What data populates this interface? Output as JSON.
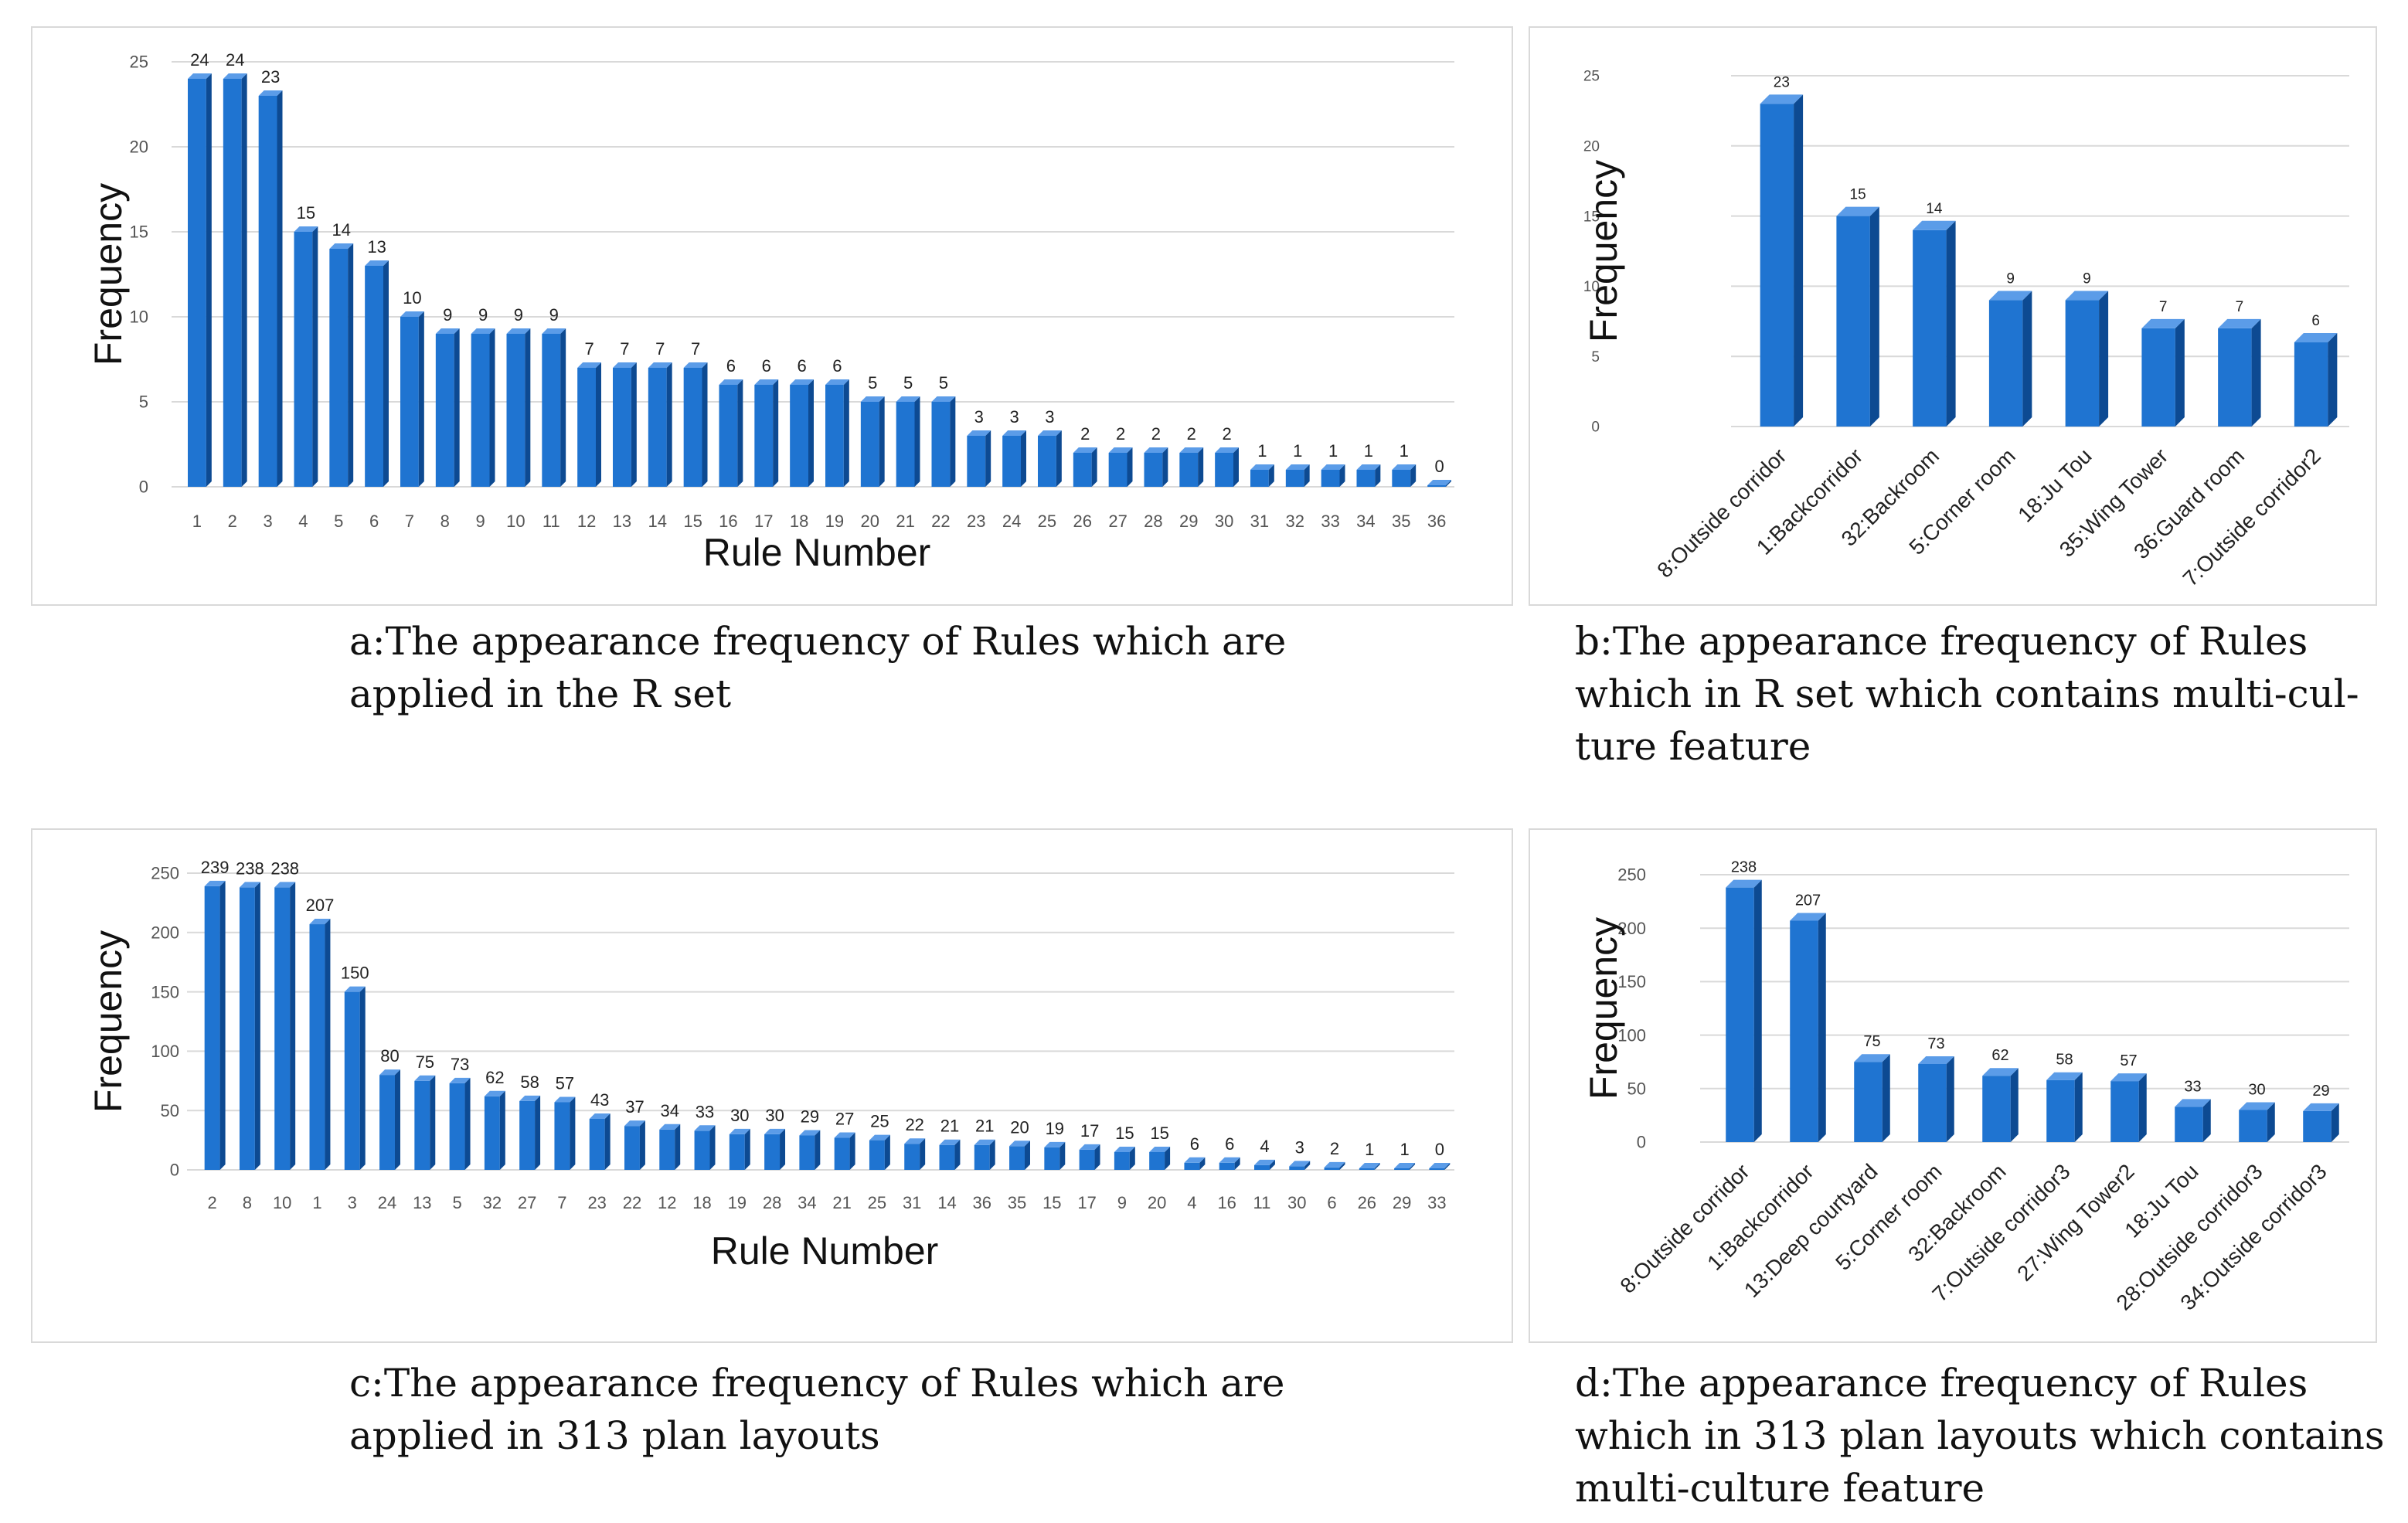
{
  "chart_data": [
    {
      "id": "a",
      "type": "bar",
      "title": "",
      "xlabel": "Rule Number",
      "ylabel": "Frequency",
      "ylim": [
        0,
        25
      ],
      "yticks": [
        "0",
        "5",
        "10",
        "15",
        "20",
        "25"
      ],
      "grid": true,
      "categories": [
        "1",
        "2",
        "3",
        "4",
        "5",
        "6",
        "7",
        "8",
        "9",
        "10",
        "11",
        "12",
        "13",
        "14",
        "15",
        "16",
        "17",
        "18",
        "19",
        "20",
        "21",
        "22",
        "23",
        "24",
        "25",
        "26",
        "27",
        "28",
        "29",
        "30",
        "31",
        "32",
        "33",
        "34",
        "35",
        "36"
      ],
      "values": [
        24,
        24,
        23,
        15,
        14,
        13,
        10,
        9,
        9,
        9,
        9,
        7,
        7,
        7,
        7,
        6,
        6,
        6,
        6,
        5,
        5,
        5,
        3,
        3,
        3,
        2,
        2,
        2,
        2,
        2,
        1,
        1,
        1,
        1,
        1,
        0
      ]
    },
    {
      "id": "b",
      "type": "bar",
      "title": "",
      "xlabel": "",
      "ylabel": "Frequency",
      "ylim": [
        0,
        25
      ],
      "yticks": [
        "0",
        "5",
        "10",
        "15",
        "20",
        "25"
      ],
      "grid": true,
      "categories": [
        "8:Outside corridor",
        "1:Backcorridor",
        "32:Backroom",
        "5:Corner room",
        "18:Ju Tou",
        "35:Wing Tower",
        "36:Guard room",
        "7:Outside corridor2"
      ],
      "values": [
        23,
        15,
        14,
        9,
        9,
        7,
        7,
        6
      ]
    },
    {
      "id": "c",
      "type": "bar",
      "title": "",
      "xlabel": "Rule Number",
      "ylabel": "Frequency",
      "ylim": [
        0,
        250
      ],
      "yticks": [
        "0",
        "50",
        "100",
        "150",
        "200",
        "250"
      ],
      "grid": true,
      "categories": [
        "2",
        "8",
        "10",
        "1",
        "3",
        "24",
        "13",
        "5",
        "32",
        "27",
        "7",
        "23",
        "22",
        "12",
        "18",
        "19",
        "28",
        "34",
        "21",
        "25",
        "31",
        "14",
        "36",
        "35",
        "15",
        "17",
        "9",
        "20",
        "4",
        "16",
        "11",
        "30",
        "6",
        "26",
        "29",
        "33"
      ],
      "values": [
        239,
        238,
        238,
        207,
        150,
        80,
        75,
        73,
        62,
        58,
        57,
        43,
        37,
        34,
        33,
        30,
        30,
        29,
        27,
        25,
        22,
        21,
        21,
        20,
        19,
        17,
        15,
        15,
        6,
        6,
        4,
        3,
        2,
        1,
        1,
        0
      ]
    },
    {
      "id": "d",
      "type": "bar",
      "title": "",
      "xlabel": "",
      "ylabel": "Frequency",
      "ylim": [
        0,
        250
      ],
      "yticks": [
        "0",
        "50",
        "100",
        "150",
        "200",
        "250"
      ],
      "grid": true,
      "categories": [
        "8:Outside corridor",
        "1:Backcorridor",
        "13:Deep courtyard",
        "5:Corner room",
        "32:Backroom",
        "7:Outside corridor3",
        "27:Wing Tower2",
        "18:Ju Tou",
        "28:Outside corridor3",
        "34:Outside corridor3"
      ],
      "values": [
        238,
        207,
        75,
        73,
        62,
        58,
        57,
        33,
        30,
        29
      ]
    }
  ],
  "captions": {
    "a": [
      "a:The appearance frequency of Rules which are",
      "applied in the R set"
    ],
    "b": [
      "b:The appearance frequency of Rules",
      "which in R set which contains multi-cul-",
      "ture feature"
    ],
    "c": [
      "c:The appearance frequency of Rules which are",
      "applied in 313 plan layouts"
    ],
    "d": [
      "d:The appearance frequency of Rules",
      "which in 313 plan layouts which contains",
      "multi-culture feature"
    ]
  },
  "colors": {
    "bar_front": "#1f74d1",
    "bar_side": "#0d4a92",
    "bar_top": "#5b9ce8",
    "grid": "#d9d9d9",
    "axis_text": "#555555",
    "label_text": "#222222",
    "title_text": "#111111"
  }
}
